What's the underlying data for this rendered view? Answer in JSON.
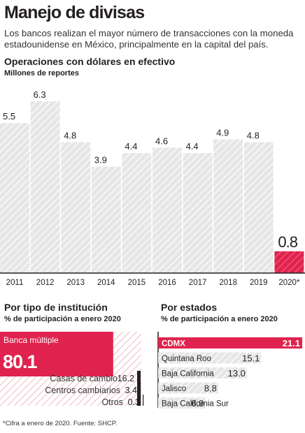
{
  "header": {
    "title": "Manejo de divisas",
    "subtitle": "Los bancos realizan el mayor número de transacciones con la moneda estadounidense en México, principalmente en la capital del país."
  },
  "colors": {
    "accent": "#e0234e",
    "bar_fill": "#e2e2e2",
    "dark": "#231f20"
  },
  "chart_data": [
    {
      "type": "bar",
      "title": "Operaciones con dólares en efectivo",
      "subtitle": "Millones de reportes",
      "categories": [
        "2011",
        "2012",
        "2013",
        "2014",
        "2015",
        "2016",
        "2017",
        "2018",
        "2019",
        "2020*"
      ],
      "values": [
        5.5,
        6.3,
        4.8,
        3.9,
        4.4,
        4.6,
        4.4,
        4.9,
        4.8,
        0.8
      ],
      "value_labels": [
        "5.5",
        "6.3",
        "4.8",
        "3.9",
        "4.4",
        "4.6",
        "4.4",
        "4.9",
        "4.8",
        "0.8"
      ],
      "highlight": "2020*",
      "ylim": [
        0,
        6.3
      ],
      "grid": false
    },
    {
      "type": "bar",
      "title": "Por tipo de institución",
      "subtitle": "% de participación a enero 2020",
      "categories": [
        "Banca múltiple",
        "Casas de cambio",
        "Centros cambiarios",
        "Otros"
      ],
      "values": [
        80.1,
        16.2,
        3.4,
        0.3
      ],
      "value_labels": [
        "80.1",
        "16.2",
        "3.4",
        "0.3"
      ]
    },
    {
      "type": "bar",
      "title": "Por estados",
      "subtitle": "% de participación a enero 2020",
      "categories": [
        "CDMX",
        "Quintana Roo",
        "Baja California",
        "Jalisco",
        "Baja California Sur"
      ],
      "values": [
        21.1,
        15.1,
        13.0,
        8.8,
        6.9
      ],
      "value_labels": [
        "21.1",
        "15.1",
        "13.0",
        "8.8",
        "6.9"
      ],
      "highlight": "CDMX"
    }
  ],
  "footnote": "*Cifra a enero de 2020. Fuente: SHCP."
}
